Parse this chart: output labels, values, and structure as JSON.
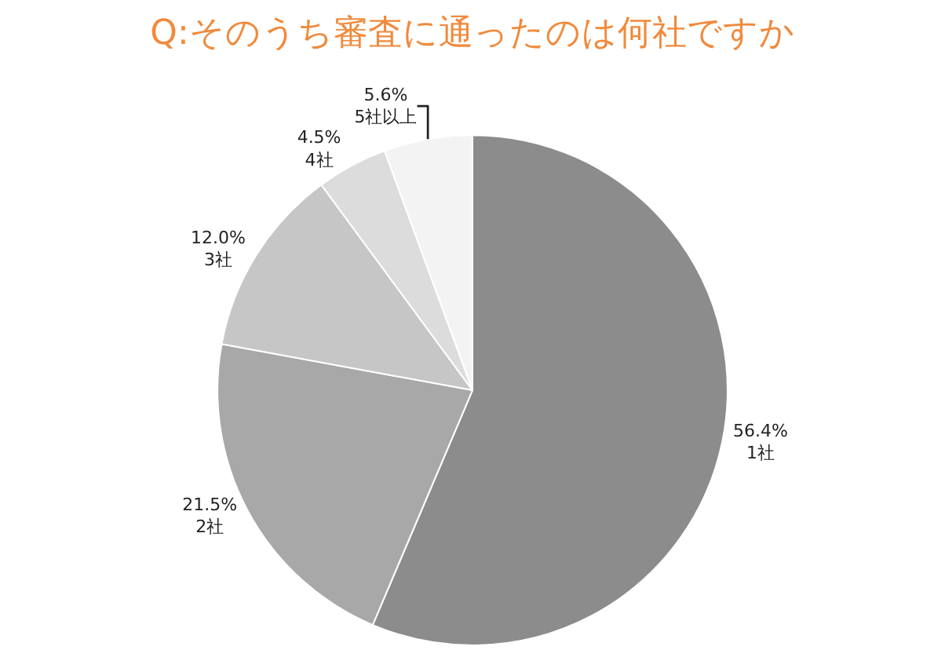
{
  "chart_data": {
    "type": "pie",
    "title": "Q:そのうち審査に通ったのは何社ですか",
    "categories": [
      "1社",
      "2社",
      "3社",
      "4社",
      "5社以上"
    ],
    "values": [
      56.4,
      21.5,
      12.0,
      4.5,
      5.6
    ],
    "value_labels": [
      "56.4%",
      "21.5%",
      "12.0%",
      "4.5%",
      "5.6%"
    ],
    "colors": [
      "#8c8c8c",
      "#a8a8a8",
      "#c6c6c6",
      "#dcdcdc",
      "#f3f3f3"
    ],
    "legend": false
  }
}
